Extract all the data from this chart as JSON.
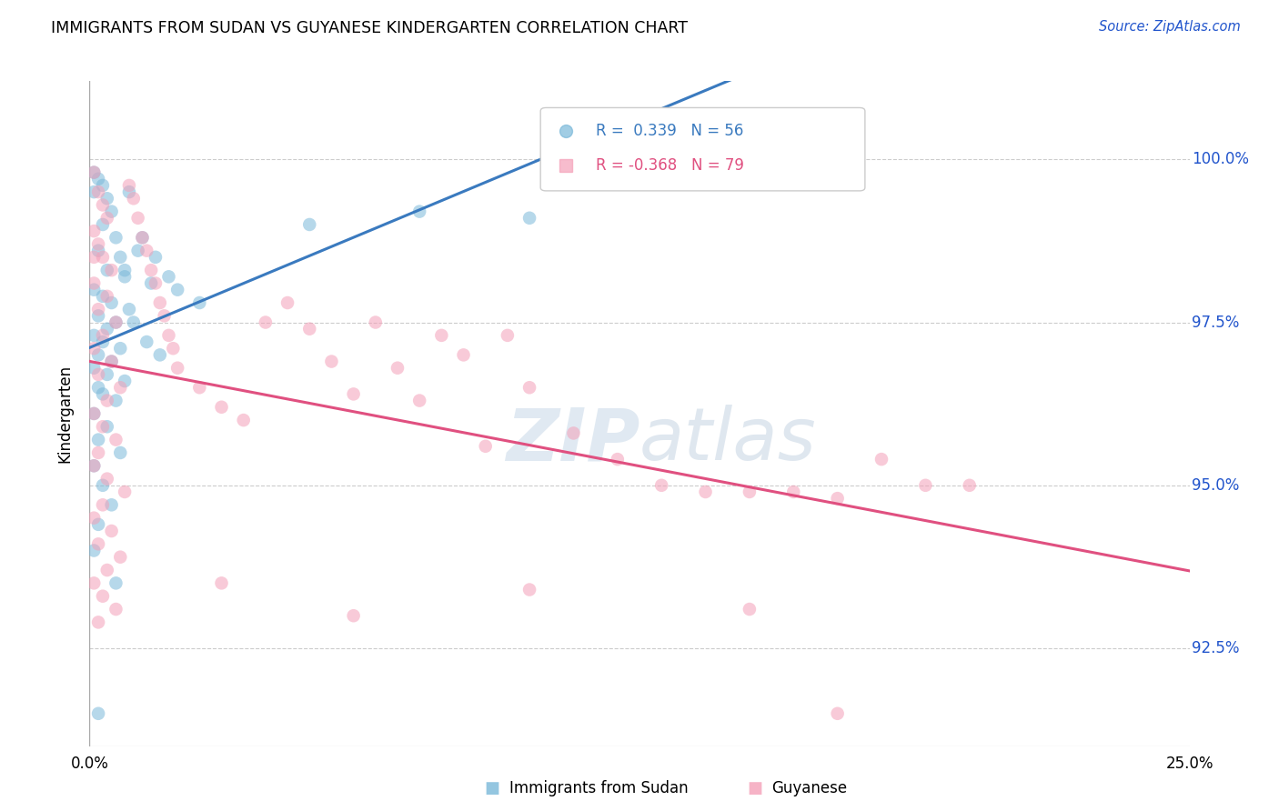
{
  "title": "IMMIGRANTS FROM SUDAN VS GUYANESE KINDERGARTEN CORRELATION CHART",
  "source": "Source: ZipAtlas.com",
  "ylabel": "Kindergarten",
  "yticks": [
    "92.5%",
    "95.0%",
    "97.5%",
    "100.0%"
  ],
  "legend_entries": [
    {
      "label": "Immigrants from Sudan",
      "R": 0.339,
      "N": 56
    },
    {
      "label": "Guyanese",
      "R": -0.368,
      "N": 79
    }
  ],
  "blue_line_color": "#3a7abf",
  "pink_line_color": "#e05080",
  "blue_scatter_color": "#7ab8d9",
  "pink_scatter_color": "#f4a0b8",
  "watermark_zip": "ZIP",
  "watermark_atlas": "atlas",
  "background_color": "#ffffff",
  "blue_points": [
    [
      0.001,
      99.8
    ],
    [
      0.002,
      99.7
    ],
    [
      0.003,
      99.6
    ],
    [
      0.001,
      99.5
    ],
    [
      0.004,
      99.4
    ],
    [
      0.005,
      99.2
    ],
    [
      0.003,
      99.0
    ],
    [
      0.006,
      98.8
    ],
    [
      0.002,
      98.6
    ],
    [
      0.007,
      98.5
    ],
    [
      0.004,
      98.3
    ],
    [
      0.008,
      98.2
    ],
    [
      0.001,
      98.0
    ],
    [
      0.003,
      97.9
    ],
    [
      0.005,
      97.8
    ],
    [
      0.009,
      97.7
    ],
    [
      0.002,
      97.6
    ],
    [
      0.006,
      97.5
    ],
    [
      0.004,
      97.4
    ],
    [
      0.001,
      97.3
    ],
    [
      0.003,
      97.2
    ],
    [
      0.007,
      97.1
    ],
    [
      0.002,
      97.0
    ],
    [
      0.005,
      96.9
    ],
    [
      0.001,
      96.8
    ],
    [
      0.004,
      96.7
    ],
    [
      0.008,
      96.6
    ],
    [
      0.002,
      96.5
    ],
    [
      0.003,
      96.4
    ],
    [
      0.006,
      96.3
    ],
    [
      0.001,
      96.1
    ],
    [
      0.004,
      95.9
    ],
    [
      0.002,
      95.7
    ],
    [
      0.007,
      95.5
    ],
    [
      0.001,
      95.3
    ],
    [
      0.003,
      95.0
    ],
    [
      0.005,
      94.7
    ],
    [
      0.002,
      94.4
    ],
    [
      0.001,
      94.0
    ],
    [
      0.006,
      93.5
    ],
    [
      0.009,
      99.5
    ],
    [
      0.012,
      98.8
    ],
    [
      0.015,
      98.5
    ],
    [
      0.018,
      98.2
    ],
    [
      0.02,
      98.0
    ],
    [
      0.025,
      97.8
    ],
    [
      0.01,
      97.5
    ],
    [
      0.013,
      97.2
    ],
    [
      0.016,
      97.0
    ],
    [
      0.008,
      98.3
    ],
    [
      0.011,
      98.6
    ],
    [
      0.014,
      98.1
    ],
    [
      0.05,
      99.0
    ],
    [
      0.075,
      99.2
    ],
    [
      0.1,
      99.1
    ],
    [
      0.002,
      91.5
    ]
  ],
  "pink_points": [
    [
      0.001,
      99.8
    ],
    [
      0.002,
      99.5
    ],
    [
      0.003,
      99.3
    ],
    [
      0.004,
      99.1
    ],
    [
      0.001,
      98.9
    ],
    [
      0.002,
      98.7
    ],
    [
      0.003,
      98.5
    ],
    [
      0.005,
      98.3
    ],
    [
      0.001,
      98.1
    ],
    [
      0.004,
      97.9
    ],
    [
      0.002,
      97.7
    ],
    [
      0.006,
      97.5
    ],
    [
      0.003,
      97.3
    ],
    [
      0.001,
      97.1
    ],
    [
      0.005,
      96.9
    ],
    [
      0.002,
      96.7
    ],
    [
      0.007,
      96.5
    ],
    [
      0.004,
      96.3
    ],
    [
      0.001,
      96.1
    ],
    [
      0.003,
      95.9
    ],
    [
      0.006,
      95.7
    ],
    [
      0.002,
      95.5
    ],
    [
      0.001,
      95.3
    ],
    [
      0.004,
      95.1
    ],
    [
      0.008,
      94.9
    ],
    [
      0.003,
      94.7
    ],
    [
      0.001,
      94.5
    ],
    [
      0.005,
      94.3
    ],
    [
      0.002,
      94.1
    ],
    [
      0.007,
      93.9
    ],
    [
      0.004,
      93.7
    ],
    [
      0.001,
      93.5
    ],
    [
      0.003,
      93.3
    ],
    [
      0.006,
      93.1
    ],
    [
      0.002,
      92.9
    ],
    [
      0.001,
      98.5
    ],
    [
      0.009,
      99.6
    ],
    [
      0.01,
      99.4
    ],
    [
      0.011,
      99.1
    ],
    [
      0.012,
      98.8
    ],
    [
      0.013,
      98.6
    ],
    [
      0.014,
      98.3
    ],
    [
      0.015,
      98.1
    ],
    [
      0.016,
      97.8
    ],
    [
      0.017,
      97.6
    ],
    [
      0.018,
      97.3
    ],
    [
      0.019,
      97.1
    ],
    [
      0.02,
      96.8
    ],
    [
      0.025,
      96.5
    ],
    [
      0.03,
      96.2
    ],
    [
      0.035,
      96.0
    ],
    [
      0.04,
      97.5
    ],
    [
      0.045,
      97.8
    ],
    [
      0.05,
      97.4
    ],
    [
      0.055,
      96.9
    ],
    [
      0.06,
      96.4
    ],
    [
      0.065,
      97.5
    ],
    [
      0.07,
      96.8
    ],
    [
      0.075,
      96.3
    ],
    [
      0.08,
      97.3
    ],
    [
      0.085,
      97.0
    ],
    [
      0.09,
      95.6
    ],
    [
      0.095,
      97.3
    ],
    [
      0.1,
      96.5
    ],
    [
      0.11,
      95.8
    ],
    [
      0.12,
      95.4
    ],
    [
      0.13,
      95.0
    ],
    [
      0.14,
      94.9
    ],
    [
      0.15,
      94.9
    ],
    [
      0.16,
      94.9
    ],
    [
      0.17,
      94.8
    ],
    [
      0.18,
      95.4
    ],
    [
      0.19,
      95.0
    ],
    [
      0.2,
      95.0
    ],
    [
      0.03,
      93.5
    ],
    [
      0.06,
      93.0
    ],
    [
      0.1,
      93.4
    ],
    [
      0.15,
      93.1
    ],
    [
      0.17,
      91.5
    ]
  ],
  "xlim": [
    0.0,
    0.25
  ],
  "ylim": [
    91.0,
    101.2
  ],
  "ytick_vals": [
    92.5,
    95.0,
    97.5,
    100.0
  ]
}
